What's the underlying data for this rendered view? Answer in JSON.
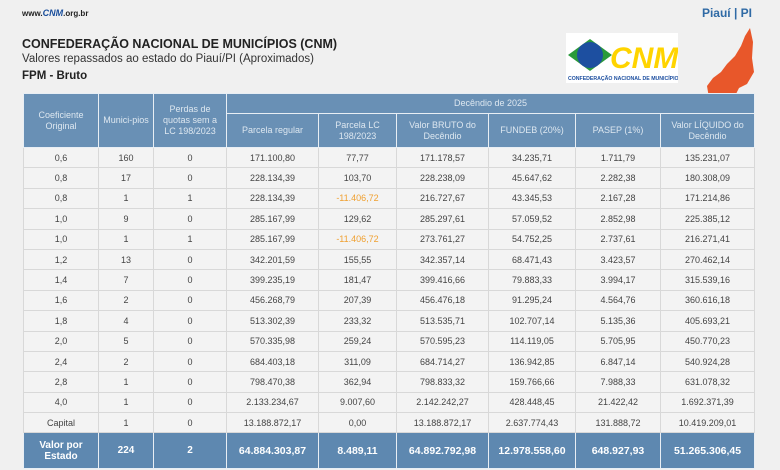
{
  "header": {
    "site_prefix": "www.",
    "site_brand": "CNM",
    "site_suffix": ".org.br",
    "state": "Piauí | PI",
    "title": "CONFEDERAÇÃO NACIONAL DE MUNICÍPIOS (CNM)",
    "subtitle": "Valores repassados ao estado do Piauí/PI (Aproximados)",
    "section": "FPM - Bruto",
    "logo_text": "CNM",
    "logo_caption": "CONFEDERAÇÃO NACIONAL DE MUNICÍPIOS"
  },
  "colors": {
    "header_bg": "#6990b5",
    "total_bg": "#5e88b0",
    "negative": "#f0a030",
    "map": "#e8572a"
  },
  "table": {
    "headers": {
      "coef": "Coeficiente Original",
      "munic": "Munici-pios",
      "perdas": "Perdas de quotas sem a LC 198/2023",
      "group": "Decêndio de 2025",
      "cols": [
        "Parcela regular",
        "Parcela LC 198/2023",
        "Valor BRUTO do Decêndio",
        "FUNDEB (20%)",
        "PASEP (1%)",
        "Valor LÍQUIDO do Decêndio"
      ]
    },
    "rows": [
      [
        "0,6",
        "160",
        "0",
        "171.100,80",
        "77,77",
        "171.178,57",
        "34.235,71",
        "1.711,79",
        "135.231,07"
      ],
      [
        "0,8",
        "17",
        "0",
        "228.134,39",
        "103,70",
        "228.238,09",
        "45.647,62",
        "2.282,38",
        "180.308,09"
      ],
      [
        "0,8",
        "1",
        "1",
        "228.134,39",
        "-11.406,72",
        "216.727,67",
        "43.345,53",
        "2.167,28",
        "171.214,86"
      ],
      [
        "1,0",
        "9",
        "0",
        "285.167,99",
        "129,62",
        "285.297,61",
        "57.059,52",
        "2.852,98",
        "225.385,12"
      ],
      [
        "1,0",
        "1",
        "1",
        "285.167,99",
        "-11.406,72",
        "273.761,27",
        "54.752,25",
        "2.737,61",
        "216.271,41"
      ],
      [
        "1,2",
        "13",
        "0",
        "342.201,59",
        "155,55",
        "342.357,14",
        "68.471,43",
        "3.423,57",
        "270.462,14"
      ],
      [
        "1,4",
        "7",
        "0",
        "399.235,19",
        "181,47",
        "399.416,66",
        "79.883,33",
        "3.994,17",
        "315.539,16"
      ],
      [
        "1,6",
        "2",
        "0",
        "456.268,79",
        "207,39",
        "456.476,18",
        "91.295,24",
        "4.564,76",
        "360.616,18"
      ],
      [
        "1,8",
        "4",
        "0",
        "513.302,39",
        "233,32",
        "513.535,71",
        "102.707,14",
        "5.135,36",
        "405.693,21"
      ],
      [
        "2,0",
        "5",
        "0",
        "570.335,98",
        "259,24",
        "570.595,23",
        "114.119,05",
        "5.705,95",
        "450.770,23"
      ],
      [
        "2,4",
        "2",
        "0",
        "684.403,18",
        "311,09",
        "684.714,27",
        "136.942,85",
        "6.847,14",
        "540.924,28"
      ],
      [
        "2,8",
        "1",
        "0",
        "798.470,38",
        "362,94",
        "798.833,32",
        "159.766,66",
        "7.988,33",
        "631.078,32"
      ],
      [
        "4,0",
        "1",
        "0",
        "2.133.234,67",
        "9.007,60",
        "2.142.242,27",
        "428.448,45",
        "21.422,42",
        "1.692.371,39"
      ],
      [
        "Capital",
        "1",
        "0",
        "13.188.872,17",
        "0,00",
        "13.188.872,17",
        "2.637.774,43",
        "131.888,72",
        "10.419.209,01"
      ]
    ],
    "total": [
      "Valor por Estado",
      "224",
      "2",
      "64.884.303,87",
      "8.489,11",
      "64.892.792,98",
      "12.978.558,60",
      "648.927,93",
      "51.265.306,45"
    ]
  }
}
